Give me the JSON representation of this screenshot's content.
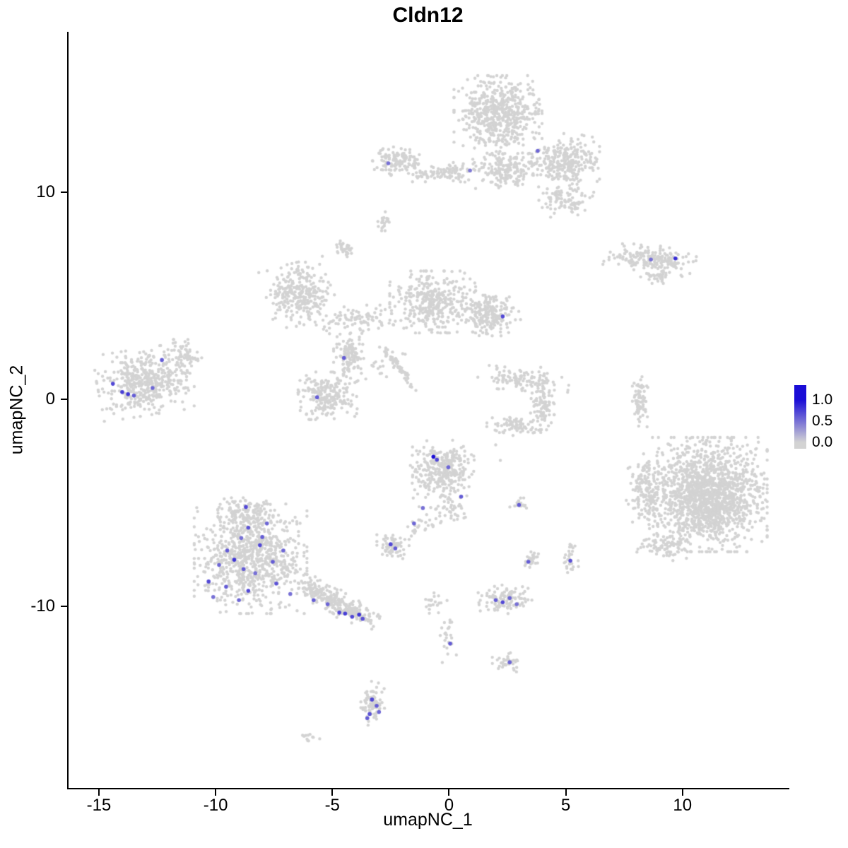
{
  "chart_data": {
    "type": "scatter",
    "title": "Cldn12",
    "xlabel": "umapNC_1",
    "ylabel": "umapNC_2",
    "xlim": [
      -16.36,
      14.55
    ],
    "ylim": [
      -18.77,
      17.75
    ],
    "x_ticks": [
      -15,
      -10,
      -5,
      0,
      5,
      10
    ],
    "y_ticks": [
      -10,
      0,
      10
    ],
    "grid": false,
    "point_radius": 2.2,
    "expressing_point_radius": 2.8,
    "colors": {
      "background_points": "#d3d3d3",
      "expression_low": "#d3d3d3",
      "expression_high": "#1a0dd6",
      "axis": "#000000"
    },
    "legend": {
      "position": "right",
      "labels": [
        "1.0",
        "0.5",
        "0.0"
      ],
      "values": [
        1.0,
        0.5,
        0.0
      ],
      "bar_range": [
        -0.15,
        1.35
      ]
    },
    "background_clusters": [
      {
        "x": 2.1,
        "y": 13.75,
        "sx": 0.82,
        "sy": 0.82,
        "n": 550,
        "rot": 0
      },
      {
        "x": 2.4,
        "y": 11.1,
        "sx": 0.6,
        "sy": 0.4,
        "n": 180,
        "rot": 0
      },
      {
        "x": 5.0,
        "y": 11.5,
        "sx": 0.63,
        "sy": 0.58,
        "n": 280,
        "rot": 0
      },
      {
        "x": 5.0,
        "y": 9.6,
        "sx": 0.5,
        "sy": 0.35,
        "n": 90,
        "rot": 0
      },
      {
        "x": 0.15,
        "y": 11.0,
        "sx": 0.5,
        "sy": 0.22,
        "n": 60,
        "rot": 0
      },
      {
        "x": -2.2,
        "y": 11.5,
        "sx": 0.47,
        "sy": 0.3,
        "n": 130,
        "rot": 0
      },
      {
        "x": -0.76,
        "y": 10.85,
        "sx": 0.35,
        "sy": 0.15,
        "n": 30,
        "rot": 0
      },
      {
        "x": -2.8,
        "y": 8.6,
        "sx": 0.12,
        "sy": 0.2,
        "n": 20,
        "rot": 0
      },
      {
        "x": -4.4,
        "y": 7.3,
        "sx": 0.18,
        "sy": 0.18,
        "n": 35,
        "rot": 0
      },
      {
        "x": 8.6,
        "y": 6.75,
        "sx": 0.86,
        "sy": 0.3,
        "n": 200,
        "rot": -5
      },
      {
        "x": 8.9,
        "y": 5.9,
        "sx": 0.3,
        "sy": 0.13,
        "n": 25,
        "rot": 0
      },
      {
        "x": -6.4,
        "y": 5.1,
        "sx": 0.62,
        "sy": 0.65,
        "n": 300,
        "rot": 15
      },
      {
        "x": -0.7,
        "y": 4.7,
        "sx": 0.8,
        "sy": 0.65,
        "n": 380,
        "rot": 0
      },
      {
        "x": 1.8,
        "y": 4.1,
        "sx": 0.55,
        "sy": 0.45,
        "n": 220,
        "rot": 0
      },
      {
        "x": -3.9,
        "y": 3.86,
        "sx": 0.8,
        "sy": 0.3,
        "n": 90,
        "rot": 0
      },
      {
        "x": -4.3,
        "y": 2.05,
        "sx": 0.28,
        "sy": 0.5,
        "n": 120,
        "rot": 0
      },
      {
        "x": -5.2,
        "y": 0.17,
        "sx": 0.55,
        "sy": 0.5,
        "n": 220,
        "rot": 0
      },
      {
        "x": -2.1,
        "y": 1.47,
        "sx": 0.65,
        "sy": 0.07,
        "n": 60,
        "rot": -55
      },
      {
        "x": -2.9,
        "y": 1.9,
        "sx": 0.5,
        "sy": 0.4,
        "n": 25,
        "rot": 0
      },
      {
        "x": -13.0,
        "y": 0.85,
        "sx": 0.9,
        "sy": 0.7,
        "n": 450,
        "rot": 10
      },
      {
        "x": -11.4,
        "y": 2.2,
        "sx": 0.35,
        "sy": 0.3,
        "n": 60,
        "rot": 0
      },
      {
        "x": 3.2,
        "y": 1.0,
        "sx": 0.85,
        "sy": 0.28,
        "n": 110,
        "rot": -8
      },
      {
        "x": 4.0,
        "y": -0.2,
        "sx": 0.22,
        "sy": 0.55,
        "n": 90,
        "rot": 0
      },
      {
        "x": 3.0,
        "y": -1.3,
        "sx": 0.6,
        "sy": 0.25,
        "n": 80,
        "rot": 0
      },
      {
        "x": 8.2,
        "y": -0.1,
        "sx": 0.15,
        "sy": 0.6,
        "n": 70,
        "rot": 0
      },
      {
        "x": 11.1,
        "y": -4.6,
        "sx": 1.1,
        "sy": 1.2,
        "n": 1600,
        "rot": 0
      },
      {
        "x": 8.4,
        "y": -4.3,
        "sx": 0.35,
        "sy": 0.8,
        "n": 150,
        "rot": 0
      },
      {
        "x": 9.2,
        "y": -7.1,
        "sx": 0.5,
        "sy": 0.3,
        "n": 80,
        "rot": 0
      },
      {
        "x": -0.3,
        "y": -3.4,
        "sx": 0.6,
        "sy": 0.62,
        "n": 320,
        "rot": 0
      },
      {
        "x": 0.15,
        "y": -5.3,
        "sx": 0.3,
        "sy": 0.35,
        "n": 40,
        "rot": 0
      },
      {
        "x": -0.76,
        "y": -5.8,
        "sx": 0.3,
        "sy": 0.3,
        "n": 15,
        "rot": 0
      },
      {
        "x": 3.0,
        "y": -5.05,
        "sx": 0.18,
        "sy": 0.15,
        "n": 18,
        "rot": 0
      },
      {
        "x": -8.5,
        "y": -7.7,
        "sx": 1.05,
        "sy": 1.15,
        "n": 800,
        "rot": 0
      },
      {
        "x": -8.8,
        "y": -5.56,
        "sx": 0.55,
        "sy": 0.35,
        "n": 120,
        "rot": 0
      },
      {
        "x": -5.1,
        "y": -9.6,
        "sx": 1.0,
        "sy": 0.25,
        "n": 220,
        "rot": -30
      },
      {
        "x": -4.1,
        "y": -10.3,
        "sx": 0.5,
        "sy": 0.2,
        "n": 80,
        "rot": -20
      },
      {
        "x": -2.4,
        "y": -7.07,
        "sx": 0.3,
        "sy": 0.3,
        "n": 70,
        "rot": 0
      },
      {
        "x": -1.4,
        "y": -6.25,
        "sx": 0.25,
        "sy": 0.2,
        "n": 12,
        "rot": 0
      },
      {
        "x": 3.5,
        "y": -7.8,
        "sx": 0.15,
        "sy": 0.3,
        "n": 25,
        "rot": 0
      },
      {
        "x": 5.2,
        "y": -7.7,
        "sx": 0.15,
        "sy": 0.35,
        "n": 30,
        "rot": 0
      },
      {
        "x": 2.4,
        "y": -9.66,
        "sx": 0.5,
        "sy": 0.3,
        "n": 110,
        "rot": 0
      },
      {
        "x": -0.7,
        "y": -9.8,
        "sx": 0.35,
        "sy": 0.25,
        "n": 20,
        "rot": 0
      },
      {
        "x": -0.03,
        "y": -11.5,
        "sx": 0.15,
        "sy": 0.55,
        "n": 25,
        "rot": 0
      },
      {
        "x": 2.5,
        "y": -12.7,
        "sx": 0.3,
        "sy": 0.2,
        "n": 35,
        "rot": 0
      },
      {
        "x": -3.27,
        "y": -14.7,
        "sx": 0.22,
        "sy": 0.47,
        "n": 80,
        "rot": 0
      },
      {
        "x": -6.0,
        "y": -16.35,
        "sx": 0.2,
        "sy": 0.1,
        "n": 12,
        "rot": 0
      }
    ],
    "singles": [
      [
        2.0,
        -2.2
      ],
      [
        2.2,
        -2.95
      ],
      [
        6.2,
        10.0
      ]
    ],
    "expressing_cells": [
      [
        3.8,
        12.0,
        0.55
      ],
      [
        -2.6,
        11.4,
        0.5
      ],
      [
        0.9,
        11.05,
        0.45
      ],
      [
        8.65,
        6.75,
        0.5
      ],
      [
        9.7,
        6.8,
        0.85
      ],
      [
        2.3,
        4.0,
        0.7
      ],
      [
        -4.5,
        2.0,
        0.6
      ],
      [
        -5.65,
        0.1,
        0.6
      ],
      [
        -12.3,
        1.9,
        0.6
      ],
      [
        -14.4,
        0.75,
        0.7
      ],
      [
        -14.0,
        0.35,
        0.75
      ],
      [
        -13.75,
        0.25,
        0.8
      ],
      [
        -13.5,
        0.18,
        0.6
      ],
      [
        -12.7,
        0.55,
        0.55
      ],
      [
        -0.67,
        -2.77,
        1.0
      ],
      [
        -0.52,
        -2.92,
        0.7
      ],
      [
        -0.03,
        -3.28,
        0.55
      ],
      [
        0.52,
        -4.7,
        0.6
      ],
      [
        -1.12,
        -5.25,
        0.5
      ],
      [
        3.0,
        -5.1,
        0.6
      ],
      [
        -8.7,
        -5.2,
        0.7
      ],
      [
        -7.8,
        -6.0,
        0.55
      ],
      [
        -8.6,
        -6.2,
        0.65
      ],
      [
        -8.9,
        -6.7,
        0.5
      ],
      [
        -8.1,
        -7.05,
        0.7
      ],
      [
        -9.5,
        -7.3,
        0.6
      ],
      [
        -9.2,
        -7.75,
        0.8
      ],
      [
        -9.85,
        -8.0,
        0.55
      ],
      [
        -8.8,
        -8.2,
        0.6
      ],
      [
        -8.3,
        -8.4,
        0.5
      ],
      [
        -10.3,
        -8.8,
        0.7
      ],
      [
        -9.55,
        -9.05,
        0.6
      ],
      [
        -8.6,
        -9.25,
        0.7
      ],
      [
        -9.0,
        -9.7,
        0.55
      ],
      [
        -10.1,
        -9.55,
        0.5
      ],
      [
        -7.55,
        -7.85,
        0.6
      ],
      [
        -7.1,
        -7.3,
        0.55
      ],
      [
        -8.0,
        -6.65,
        0.6
      ],
      [
        -7.4,
        -8.9,
        0.65
      ],
      [
        -6.8,
        -9.4,
        0.5
      ],
      [
        -5.8,
        -9.7,
        0.6
      ],
      [
        -5.2,
        -9.9,
        0.55
      ],
      [
        -4.7,
        -10.3,
        0.7
      ],
      [
        -4.45,
        -10.35,
        0.75
      ],
      [
        -4.15,
        -10.5,
        0.7
      ],
      [
        -3.85,
        -10.4,
        0.8
      ],
      [
        -3.7,
        -10.6,
        0.65
      ],
      [
        -2.5,
        -7.0,
        0.7
      ],
      [
        -2.3,
        -7.2,
        0.6
      ],
      [
        -1.5,
        -6.0,
        0.55
      ],
      [
        3.4,
        -7.85,
        0.6
      ],
      [
        5.2,
        -7.8,
        0.65
      ],
      [
        2.0,
        -9.7,
        0.6
      ],
      [
        2.3,
        -9.8,
        0.7
      ],
      [
        2.6,
        -9.6,
        0.55
      ],
      [
        2.9,
        -9.9,
        0.5
      ],
      [
        0.05,
        -11.8,
        0.6
      ],
      [
        2.6,
        -12.7,
        0.55
      ],
      [
        -3.3,
        -14.5,
        0.7
      ],
      [
        -3.1,
        -14.8,
        0.6
      ],
      [
        -3.4,
        -15.2,
        0.65
      ],
      [
        -3.0,
        -15.1,
        0.55
      ],
      [
        -3.5,
        -15.4,
        0.6
      ]
    ]
  }
}
